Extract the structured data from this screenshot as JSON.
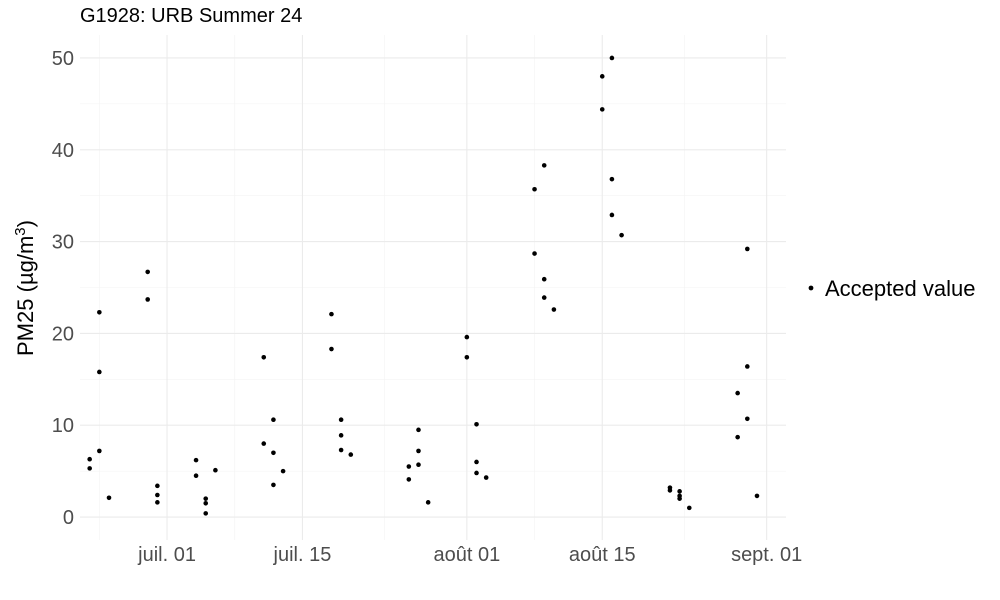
{
  "chart_data": {
    "type": "scatter",
    "title": "G1928: URB Summer 24",
    "ylabel": "PM25 (µg/m³)",
    "ylabel_parts": {
      "prefix": "PM25 (µg/m",
      "superscript": "3",
      "suffix": ")"
    },
    "xlabel": "",
    "x_ticks": [
      {
        "date": "2024-07-01",
        "label": "juil. 01"
      },
      {
        "date": "2024-07-15",
        "label": "juil. 15"
      },
      {
        "date": "2024-08-01",
        "label": "août 01"
      },
      {
        "date": "2024-08-15",
        "label": "août 15"
      },
      {
        "date": "2024-09-01",
        "label": "sept. 01"
      }
    ],
    "xlim": [
      "2024-06-22",
      "2024-09-03"
    ],
    "y_ticks": [
      0,
      10,
      20,
      30,
      40,
      50
    ],
    "ylim": [
      -2.5,
      52.5
    ],
    "grid": true,
    "legend": {
      "position": "right",
      "entries": [
        "Accepted value"
      ]
    },
    "series": [
      {
        "name": "Accepted value",
        "color": "#000000",
        "points": [
          [
            "2024-06-23",
            6.3
          ],
          [
            "2024-06-23",
            5.3
          ],
          [
            "2024-06-24",
            22.3
          ],
          [
            "2024-06-24",
            15.8
          ],
          [
            "2024-06-24",
            7.2
          ],
          [
            "2024-06-25",
            2.1
          ],
          [
            "2024-06-29",
            26.7
          ],
          [
            "2024-06-29",
            23.7
          ],
          [
            "2024-06-30",
            3.4
          ],
          [
            "2024-06-30",
            2.4
          ],
          [
            "2024-06-30",
            1.6
          ],
          [
            "2024-07-04",
            4.5
          ],
          [
            "2024-07-04",
            6.2
          ],
          [
            "2024-07-05",
            2.0
          ],
          [
            "2024-07-05",
            1.5
          ],
          [
            "2024-07-05",
            0.4
          ],
          [
            "2024-07-06",
            5.1
          ],
          [
            "2024-07-11",
            8.0
          ],
          [
            "2024-07-11",
            17.4
          ],
          [
            "2024-07-12",
            10.6
          ],
          [
            "2024-07-12",
            7.0
          ],
          [
            "2024-07-12",
            3.5
          ],
          [
            "2024-07-13",
            5.0
          ],
          [
            "2024-07-18",
            18.3
          ],
          [
            "2024-07-18",
            22.1
          ],
          [
            "2024-07-19",
            10.6
          ],
          [
            "2024-07-19",
            8.9
          ],
          [
            "2024-07-19",
            7.3
          ],
          [
            "2024-07-20",
            6.8
          ],
          [
            "2024-07-26",
            5.5
          ],
          [
            "2024-07-26",
            4.1
          ],
          [
            "2024-07-27",
            7.2
          ],
          [
            "2024-07-27",
            5.7
          ],
          [
            "2024-07-27",
            9.5
          ],
          [
            "2024-07-28",
            1.6
          ],
          [
            "2024-08-01",
            19.6
          ],
          [
            "2024-08-01",
            17.4
          ],
          [
            "2024-08-02",
            6.0
          ],
          [
            "2024-08-02",
            4.8
          ],
          [
            "2024-08-02",
            10.1
          ],
          [
            "2024-08-03",
            4.3
          ],
          [
            "2024-08-08",
            35.7
          ],
          [
            "2024-08-08",
            28.7
          ],
          [
            "2024-08-09",
            38.3
          ],
          [
            "2024-08-09",
            25.9
          ],
          [
            "2024-08-09",
            23.9
          ],
          [
            "2024-08-10",
            22.6
          ],
          [
            "2024-08-15",
            48.0
          ],
          [
            "2024-08-15",
            44.4
          ],
          [
            "2024-08-16",
            50.0
          ],
          [
            "2024-08-16",
            36.8
          ],
          [
            "2024-08-16",
            32.9
          ],
          [
            "2024-08-17",
            30.7
          ],
          [
            "2024-08-22",
            3.2
          ],
          [
            "2024-08-22",
            2.9
          ],
          [
            "2024-08-23",
            2.3
          ],
          [
            "2024-08-23",
            2.0
          ],
          [
            "2024-08-23",
            2.8
          ],
          [
            "2024-08-24",
            1.0
          ],
          [
            "2024-08-29",
            8.7
          ],
          [
            "2024-08-29",
            13.5
          ],
          [
            "2024-08-30",
            10.7
          ],
          [
            "2024-08-30",
            29.2
          ],
          [
            "2024-08-30",
            16.4
          ],
          [
            "2024-08-31",
            2.3
          ]
        ]
      }
    ]
  }
}
